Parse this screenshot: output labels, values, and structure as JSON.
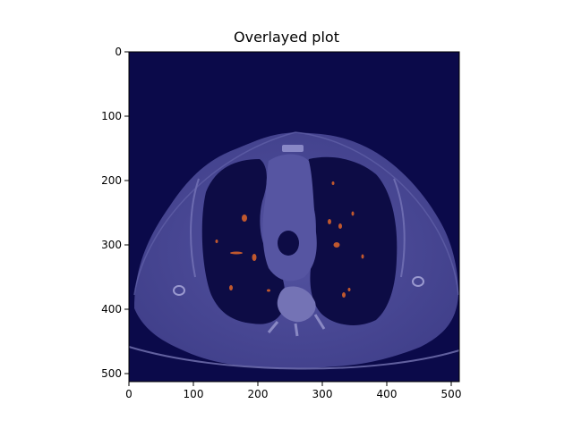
{
  "title": "Overlayed plot",
  "axes": {
    "x_ticks": [
      "0",
      "100",
      "200",
      "300",
      "400",
      "500"
    ],
    "y_ticks": [
      "0",
      "100",
      "200",
      "300",
      "400",
      "500"
    ],
    "xlim": [
      0,
      511
    ],
    "ylim": [
      511,
      0
    ]
  },
  "image": {
    "kind": "axial chest CT slice with overlay",
    "background_color": "#0b0a4a",
    "tissue_color": "#4b4a9a",
    "lung_color": "#0d0c45",
    "overlay_color": "#c0582e"
  }
}
